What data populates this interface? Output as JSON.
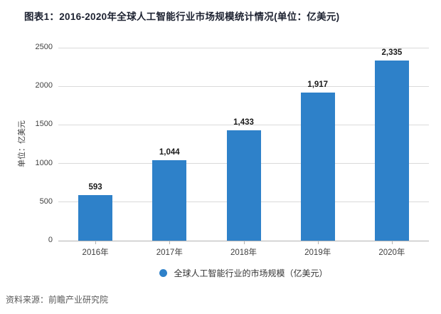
{
  "title": "图表1：2016-2020年全球人工智能行业市场规模统计情况(单位：亿美元)",
  "source": "资料来源：前瞻产业研究院",
  "colors": {
    "bar": "#2e81c9",
    "title": "#1c2130",
    "gridline": "#dadada",
    "axis": "#b3b3b3"
  },
  "chart_data": {
    "type": "bar",
    "title": "图表1：2016-2020年全球人工智能行业市场规模统计情况(单位：亿美元)",
    "categories": [
      "2016年",
      "2017年",
      "2018年",
      "2019年",
      "2020年"
    ],
    "values": [
      593,
      1044,
      1433,
      1917,
      2335
    ],
    "value_labels": [
      "593",
      "1,044",
      "1,433",
      "1,917",
      "2,335"
    ],
    "series_name": "全球人工智能行业的市场规模（亿美元）",
    "xlabel": "",
    "ylabel": "单位：亿美元",
    "ylim": [
      0,
      2500
    ],
    "yticks": [
      0,
      500,
      1000,
      1500,
      2000,
      2500
    ],
    "grid": true,
    "legend_position": "bottom",
    "bar_color": "#2e81c9"
  },
  "legend": {
    "label": "全球人工智能行业的市场规模（亿美元）"
  }
}
